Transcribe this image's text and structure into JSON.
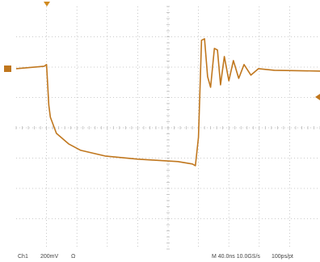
{
  "chart_data": {
    "type": "line",
    "x": [
      0,
      37,
      40,
      43,
      45,
      53,
      69,
      85,
      117,
      160,
      213,
      232,
      236,
      240,
      244,
      248,
      252,
      256,
      261,
      265,
      269,
      274,
      280,
      286,
      293,
      300,
      309,
      319,
      340,
      400
    ],
    "values": [
      0,
      16,
      27,
      -240,
      -320,
      -427,
      -496,
      -539,
      -576,
      -597,
      -613,
      -629,
      -640,
      -453,
      187,
      197,
      -53,
      -123,
      133,
      123,
      -107,
      80,
      -80,
      53,
      -64,
      27,
      -43,
      0,
      -11,
      -16
    ],
    "color": "#c0771e",
    "xlim": [
      0,
      400
    ],
    "ylim": [
      -1190,
      410
    ]
  },
  "status": {
    "channel": "Ch1",
    "scale": "200mV",
    "coupling": "Ω",
    "timebase": "M 40.0ns 10.0GS/s",
    "resolution": "100ps/pt"
  }
}
